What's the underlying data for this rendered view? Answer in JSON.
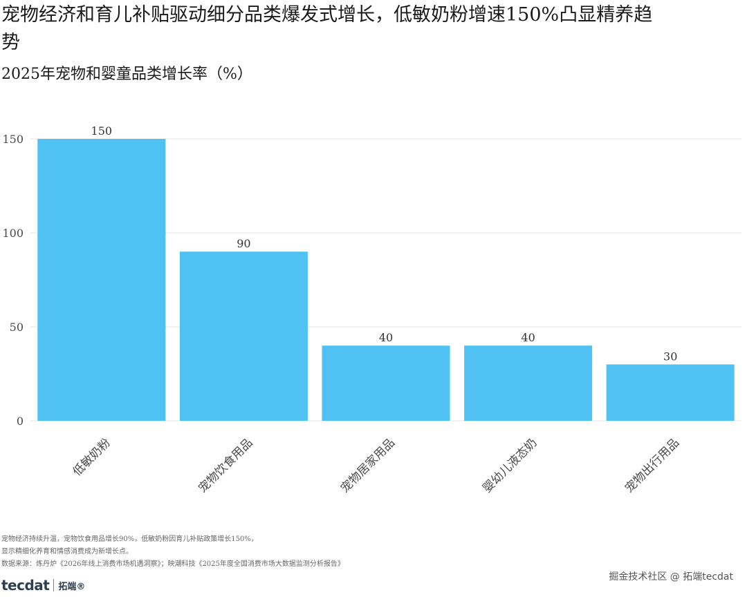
{
  "title": "宠物经济和育儿补贴驱动细分品类爆发式增长，低敏奶粉增速150%凸显精养趋势",
  "subtitle": "2025年宠物和婴童品类增长率（%）",
  "chart_data": {
    "type": "bar",
    "categories": [
      "低敏奶粉",
      "宠物饮食用品",
      "宠物居家用品",
      "婴幼儿液态奶",
      "宠物出行用品"
    ],
    "values": [
      150,
      90,
      40,
      40,
      30
    ],
    "ylim": [
      0,
      160
    ],
    "yticks": [
      0,
      50,
      100,
      150
    ],
    "grid": true,
    "bar_color": "#4fc1f2",
    "data_labels": [
      "150",
      "90",
      "40",
      "40",
      "30"
    ]
  },
  "footer": {
    "note_line1": "宠物经济持续升温，宠物饮食用品增长90%，低敏奶粉因育儿补贴政策增长150%，",
    "note_line2": "显示精细化养育和情感消费成为新增长点。",
    "source": "数据来源：炼丹炉《2026年线上消费市场机遇洞察》；映潮科技《2025年度全国消费市场大数据监测分析报告》",
    "watermark": "掘金技术社区 @ 拓端tecdat",
    "logo_mark": "tecdat",
    "logo_cn": "拓端®"
  }
}
